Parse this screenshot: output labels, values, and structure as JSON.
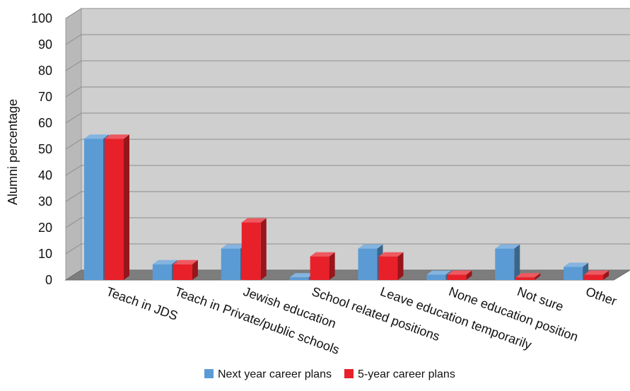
{
  "chart_data": {
    "type": "bar",
    "title": "",
    "xlabel": "",
    "ylabel": "Alumni percentage",
    "ylim": [
      0,
      100
    ],
    "yticks": [
      0,
      10,
      20,
      30,
      40,
      50,
      60,
      70,
      80,
      90,
      100
    ],
    "grid": true,
    "legend_position": "bottom",
    "categories": [
      "Teach in JDS",
      "Teach in Private/public schools",
      "Jewish education",
      "School related positions",
      "Leave education temporarily",
      "None education position",
      "Not sure",
      "Other"
    ],
    "series": [
      {
        "name": "Next year career plans",
        "color": "#5b9bd5",
        "values": [
          54,
          6,
          12,
          1,
          12,
          2,
          12,
          5
        ]
      },
      {
        "name": "5-year career plans",
        "color": "#e8202a",
        "values": [
          54,
          6,
          22,
          9,
          9,
          2,
          1,
          2
        ]
      }
    ]
  }
}
